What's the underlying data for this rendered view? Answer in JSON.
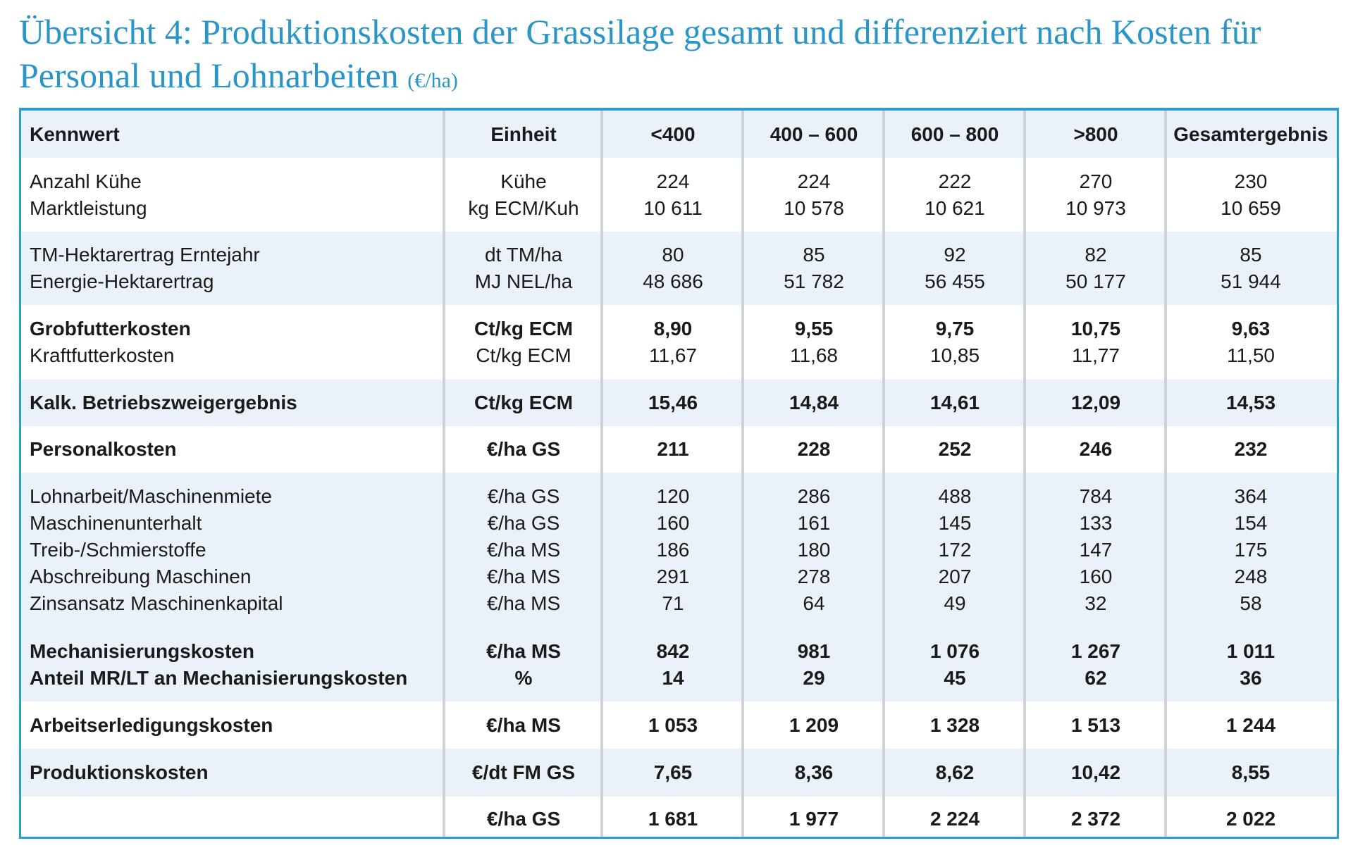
{
  "title": {
    "text": "Übersicht 4: Produktionskosten der Grassilage gesamt und differenziert nach Kosten für Personal und Lohnarbeiten",
    "unit": "(€/ha)"
  },
  "colors": {
    "accent": "#2a95c8",
    "band": "#eaf1f9",
    "border": "#2a9fd6"
  },
  "header": [
    "Kennwert",
    "Einheit",
    "<400",
    "400 – 600",
    "600 – 800",
    ">800",
    "Gesamtergebnis"
  ],
  "groups": [
    {
      "rows": [
        {
          "label": "Anzahl Kühe",
          "unit": "Kühe",
          "values": [
            "224",
            "224",
            "222",
            "270",
            "230"
          ],
          "bold": false
        },
        {
          "label": "Marktleistung",
          "unit": "kg ECM/Kuh",
          "values": [
            "10 611",
            "10 578",
            "10 621",
            "10 973",
            "10 659"
          ],
          "bold": false
        }
      ]
    },
    {
      "rows": [
        {
          "label": "TM-Hektarertrag Erntejahr",
          "unit": "dt TM/ha",
          "values": [
            "80",
            "85",
            "92",
            "82",
            "85"
          ],
          "bold": false
        },
        {
          "label": "Energie-Hektarertrag",
          "unit": "MJ NEL/ha",
          "values": [
            "48 686",
            "51 782",
            "56 455",
            "50 177",
            "51 944"
          ],
          "bold": false
        }
      ]
    },
    {
      "rows": [
        {
          "label": "Grobfutterkosten",
          "unit": "Ct/kg ECM",
          "values": [
            "8,90",
            "9,55",
            "9,75",
            "10,75",
            "9,63"
          ],
          "bold": true
        },
        {
          "label": "Kraftfutterkosten",
          "unit": "Ct/kg ECM",
          "values": [
            "11,67",
            "11,68",
            "10,85",
            "11,77",
            "11,50"
          ],
          "bold": false
        }
      ]
    },
    {
      "rows": [
        {
          "label": "Kalk. Betriebszweigergebnis",
          "unit": "Ct/kg ECM",
          "values": [
            "15,46",
            "14,84",
            "14,61",
            "12,09",
            "14,53"
          ],
          "bold": true
        }
      ]
    },
    {
      "rows": [
        {
          "label": "Personalkosten",
          "unit": "€/ha GS",
          "values": [
            "211",
            "228",
            "252",
            "246",
            "232"
          ],
          "bold": true
        }
      ]
    },
    {
      "rows": [
        {
          "label": "Lohnarbeit/Maschinenmiete",
          "unit": "€/ha GS",
          "values": [
            "120",
            "286",
            "488",
            "784",
            "364"
          ],
          "bold": false
        },
        {
          "label": "Maschinenunterhalt",
          "unit": "€/ha GS",
          "values": [
            "160",
            "161",
            "145",
            "133",
            "154"
          ],
          "bold": false
        },
        {
          "label": "Treib-/Schmierstoffe",
          "unit": "€/ha MS",
          "values": [
            "186",
            "180",
            "172",
            "147",
            "175"
          ],
          "bold": false
        },
        {
          "label": "Abschreibung Maschinen",
          "unit": "€/ha MS",
          "values": [
            "291",
            "278",
            "207",
            "160",
            "248"
          ],
          "bold": false
        },
        {
          "label": "Zinsansatz Maschinenkapital",
          "unit": "€/ha MS",
          "values": [
            "71",
            "64",
            "49",
            "32",
            "58"
          ],
          "bold": false
        },
        {
          "label": "Mechanisierungskosten",
          "unit": "€/ha MS",
          "values": [
            "842",
            "981",
            "1 076",
            "1 267",
            "1 011"
          ],
          "bold": true,
          "gap": true
        },
        {
          "label": "Anteil MR/LT an Mechanisierungskosten",
          "unit": "%",
          "values": [
            "14",
            "29",
            "45",
            "62",
            "36"
          ],
          "bold": true
        }
      ]
    },
    {
      "rows": [
        {
          "label": "Arbeitserledigungskosten",
          "unit": "€/ha MS",
          "values": [
            "1 053",
            "1 209",
            "1 328",
            "1 513",
            "1 244"
          ],
          "bold": true
        }
      ]
    },
    {
      "rows": [
        {
          "label": "Produktionskosten",
          "unit": "€/dt FM GS",
          "values": [
            "7,65",
            "8,36",
            "8,62",
            "10,42",
            "8,55"
          ],
          "bold": true
        }
      ]
    },
    {
      "rows": [
        {
          "label": "",
          "unit": "€/ha GS",
          "values": [
            "1 681",
            "1 977",
            "2 224",
            "2 372",
            "2 022"
          ],
          "bold": true
        }
      ]
    }
  ]
}
